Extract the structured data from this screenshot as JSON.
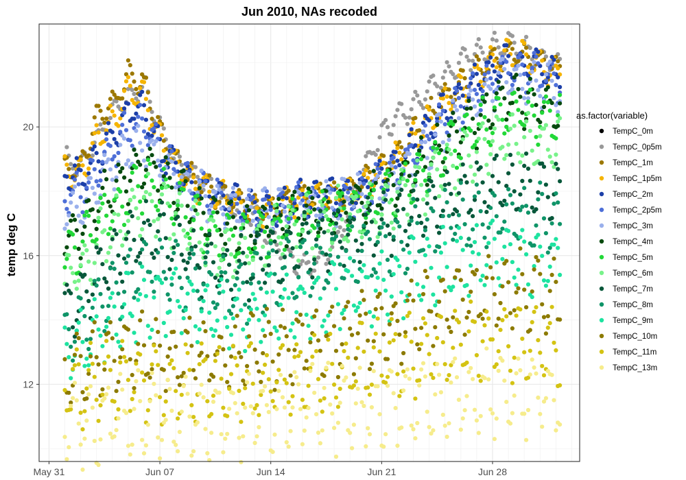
{
  "chart_data": {
    "type": "scatter",
    "title": "Jun 2010, NAs recoded",
    "xlabel": "",
    "ylabel": "temp deg C",
    "x_type": "date",
    "xlim": [
      "2010-05-30T09:00",
      "2010-07-03T12:00"
    ],
    "ylim": [
      9.6,
      23.2
    ],
    "x_ticks": [
      {
        "value": "2010-05-31",
        "label": "May 31"
      },
      {
        "value": "2010-06-07",
        "label": "Jun 07"
      },
      {
        "value": "2010-06-14",
        "label": "Jun 14"
      },
      {
        "value": "2010-06-21",
        "label": "Jun 21"
      },
      {
        "value": "2010-06-28",
        "label": "Jun 28"
      }
    ],
    "y_ticks": [
      12,
      16,
      20
    ],
    "grid": true,
    "legend_title": "as.factor(variable)",
    "legend_position": "right",
    "x_dates": [
      "2010-06-01",
      "2010-06-02",
      "2010-06-03",
      "2010-06-04",
      "2010-06-05",
      "2010-06-06",
      "2010-06-07",
      "2010-06-08",
      "2010-06-09",
      "2010-06-10",
      "2010-06-11",
      "2010-06-12",
      "2010-06-13",
      "2010-06-14",
      "2010-06-15",
      "2010-06-16",
      "2010-06-17",
      "2010-06-18",
      "2010-06-19",
      "2010-06-20",
      "2010-06-21",
      "2010-06-22",
      "2010-06-23",
      "2010-06-24",
      "2010-06-25",
      "2010-06-26",
      "2010-06-27",
      "2010-06-28",
      "2010-06-29",
      "2010-06-30",
      "2010-07-01",
      "2010-07-02"
    ],
    "series": [
      {
        "name": "TempC_0m",
        "color": "#000000",
        "values": []
      },
      {
        "name": "TempC_0p5m",
        "color": "#999999",
        "values": [
          19.0,
          18.7,
          19.6,
          20.4,
          20.9,
          21.3,
          20.0,
          19.0,
          18.5,
          18.2,
          17.8,
          17.5,
          17.2,
          16.6,
          16.0,
          15.6,
          15.8,
          16.3,
          17.5,
          18.8,
          19.8,
          20.3,
          20.6,
          21.2,
          21.6,
          22.0,
          22.3,
          22.5,
          22.6,
          22.4,
          22.2,
          22.0
        ]
      },
      {
        "name": "TempC_1m",
        "color": "#9C7800",
        "values": [
          18.8,
          18.6,
          20.3,
          20.6,
          21.6,
          21.3,
          19.8,
          18.9,
          18.4,
          18.1,
          17.8,
          17.6,
          17.5,
          17.4,
          17.6,
          17.8,
          17.8,
          17.9,
          18.0,
          18.3,
          18.7,
          19.2,
          19.8,
          20.4,
          20.9,
          21.3,
          21.7,
          22.0,
          22.3,
          22.2,
          22.0,
          21.8
        ]
      },
      {
        "name": "TempC_1p5m",
        "color": "#F5B400",
        "values": [
          18.7,
          18.5,
          19.7,
          20.2,
          21.1,
          20.9,
          19.6,
          18.8,
          18.3,
          18.0,
          17.8,
          17.6,
          17.4,
          17.4,
          17.6,
          17.8,
          17.8,
          17.8,
          17.9,
          18.2,
          18.6,
          19.0,
          19.6,
          20.2,
          20.7,
          21.2,
          21.6,
          22.0,
          22.2,
          22.1,
          21.9,
          21.7
        ]
      },
      {
        "name": "TempC_2m",
        "color": "#1C3FA8",
        "values": [
          18.5,
          18.4,
          19.1,
          19.7,
          20.5,
          20.6,
          19.4,
          18.7,
          18.3,
          18.0,
          17.8,
          17.6,
          17.4,
          17.4,
          17.6,
          17.8,
          17.8,
          17.8,
          17.9,
          18.1,
          18.5,
          18.9,
          19.4,
          20.0,
          20.5,
          21.0,
          21.4,
          21.8,
          22.0,
          21.9,
          21.8,
          21.6
        ]
      },
      {
        "name": "TempC_2p5m",
        "color": "#4E6FD8",
        "values": [
          18.0,
          17.9,
          18.7,
          19.3,
          19.9,
          20.1,
          19.2,
          18.6,
          18.2,
          17.9,
          17.7,
          17.5,
          17.4,
          17.4,
          17.5,
          17.7,
          17.7,
          17.7,
          17.8,
          18.0,
          18.3,
          18.7,
          19.1,
          19.7,
          20.2,
          20.7,
          21.1,
          21.5,
          21.8,
          21.7,
          21.6,
          21.4
        ]
      },
      {
        "name": "TempC_3m",
        "color": "#9AB0EC",
        "values": [
          17.4,
          17.4,
          18.1,
          18.7,
          19.3,
          19.5,
          18.9,
          18.4,
          18.0,
          17.8,
          17.6,
          17.4,
          17.3,
          17.3,
          17.4,
          17.6,
          17.6,
          17.6,
          17.7,
          17.9,
          18.1,
          18.5,
          18.9,
          19.4,
          19.9,
          20.4,
          20.8,
          21.2,
          21.5,
          21.4,
          21.3,
          21.2
        ]
      },
      {
        "name": "TempC_4m",
        "color": "#064A0E",
        "values": [
          16.6,
          16.8,
          17.6,
          18.0,
          18.4,
          18.8,
          18.6,
          18.1,
          17.6,
          17.2,
          16.9,
          16.8,
          16.8,
          17.0,
          17.1,
          17.3,
          17.4,
          17.4,
          17.5,
          17.6,
          17.9,
          18.2,
          18.6,
          19.0,
          19.5,
          19.9,
          20.2,
          20.6,
          20.9,
          20.8,
          20.7,
          20.6
        ]
      },
      {
        "name": "TempC_5m",
        "color": "#22D838",
        "values": [
          16.0,
          16.3,
          17.0,
          17.4,
          17.9,
          18.2,
          18.1,
          17.7,
          17.2,
          16.8,
          16.5,
          16.5,
          16.6,
          16.8,
          16.9,
          17.1,
          17.2,
          17.3,
          17.4,
          17.5,
          17.7,
          18.0,
          18.4,
          18.8,
          19.2,
          19.6,
          19.9,
          20.3,
          20.6,
          20.5,
          20.4,
          20.3
        ]
      },
      {
        "name": "TempC_6m",
        "color": "#78F28A",
        "values": [
          15.2,
          15.6,
          16.3,
          16.8,
          17.3,
          17.6,
          17.5,
          17.2,
          16.8,
          16.4,
          16.1,
          16.1,
          16.3,
          16.5,
          16.7,
          16.9,
          17.0,
          17.1,
          17.2,
          17.3,
          17.5,
          17.8,
          18.1,
          18.4,
          18.7,
          19.0,
          19.2,
          19.5,
          19.7,
          19.6,
          19.5,
          19.4
        ]
      },
      {
        "name": "TempC_7m",
        "color": "#07573A",
        "values": [
          14.3,
          14.7,
          15.4,
          15.9,
          16.4,
          16.7,
          16.6,
          16.3,
          16.0,
          15.7,
          15.5,
          15.5,
          15.7,
          15.9,
          16.1,
          16.3,
          16.4,
          16.5,
          16.6,
          16.7,
          16.9,
          17.1,
          17.4,
          17.6,
          17.8,
          18.0,
          18.1,
          18.2,
          18.3,
          18.2,
          18.1,
          18.0
        ]
      },
      {
        "name": "TempC_8m",
        "color": "#0F9468",
        "values": [
          13.6,
          13.9,
          14.5,
          15.0,
          15.4,
          15.7,
          15.7,
          15.5,
          15.3,
          15.1,
          15.0,
          15.0,
          15.1,
          15.3,
          15.5,
          15.7,
          15.8,
          15.9,
          16.0,
          16.1,
          16.3,
          16.5,
          16.7,
          16.9,
          17.0,
          17.1,
          17.2,
          17.3,
          17.3,
          17.2,
          17.1,
          17.0
        ]
      },
      {
        "name": "TempC_9m",
        "color": "#1DE3A0",
        "values": [
          13.0,
          13.2,
          13.6,
          14.0,
          14.3,
          14.6,
          14.7,
          14.6,
          14.5,
          14.3,
          14.2,
          14.1,
          14.2,
          14.3,
          14.4,
          14.5,
          14.6,
          14.7,
          14.8,
          14.9,
          15.0,
          15.2,
          15.4,
          15.6,
          15.7,
          15.8,
          15.9,
          16.0,
          16.0,
          15.9,
          15.8,
          15.7
        ]
      },
      {
        "name": "TempC_10m",
        "color": "#8C7A00",
        "values": [
          12.4,
          12.5,
          12.7,
          12.9,
          13.0,
          13.1,
          13.1,
          13.0,
          12.9,
          12.9,
          12.9,
          12.9,
          13.0,
          13.1,
          13.2,
          13.3,
          13.4,
          13.5,
          13.6,
          13.7,
          13.8,
          13.9,
          14.1,
          14.3,
          14.5,
          14.7,
          14.9,
          15.0,
          15.0,
          14.9,
          14.8,
          14.7
        ]
      },
      {
        "name": "TempC_11m",
        "color": "#D4C313",
        "values": [
          11.8,
          11.9,
          12.0,
          12.0,
          12.1,
          12.1,
          12.1,
          12.0,
          12.0,
          12.0,
          12.0,
          12.0,
          12.0,
          12.1,
          12.1,
          12.2,
          12.3,
          12.4,
          12.5,
          12.6,
          12.7,
          12.8,
          12.9,
          13.0,
          13.1,
          13.2,
          13.3,
          13.4,
          13.4,
          13.3,
          13.2,
          13.1
        ]
      },
      {
        "name": "TempC_13m",
        "color": "#F6EC8C",
        "values": [
          10.9,
          10.8,
          10.9,
          11.0,
          11.0,
          11.0,
          11.0,
          10.9,
          10.9,
          10.9,
          11.0,
          11.0,
          11.1,
          11.2,
          11.2,
          11.2,
          11.2,
          11.2,
          11.3,
          11.3,
          11.3,
          11.4,
          11.4,
          11.5,
          11.6,
          11.6,
          11.6,
          11.7,
          11.7,
          11.7,
          11.6,
          11.6
        ]
      }
    ]
  }
}
